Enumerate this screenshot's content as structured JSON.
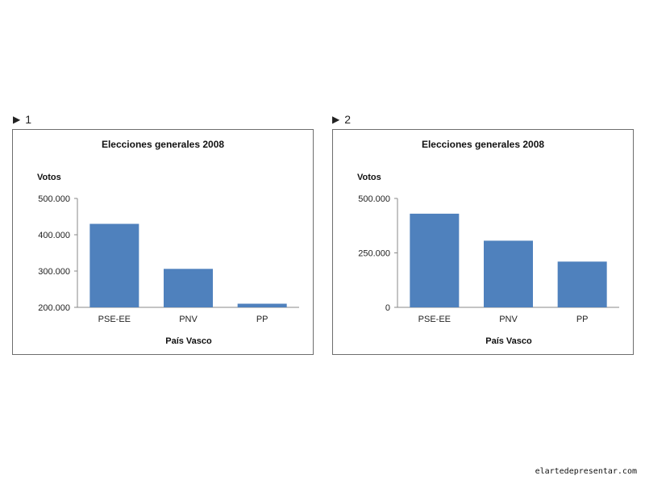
{
  "panels": [
    {
      "marker": "1"
    },
    {
      "marker": "2"
    }
  ],
  "watermark": "elartedepresentar.com",
  "colors": {
    "bar": "#4f81bd",
    "axis": "#8a8a8a"
  },
  "chart_data": [
    {
      "type": "bar",
      "title": "Elecciones generales 2008",
      "ylabel": "Votos",
      "xlabel": "País Vasco",
      "categories": [
        "PSE-EE",
        "PNV",
        "PP"
      ],
      "values": [
        430000,
        306000,
        210000
      ],
      "ylim": [
        200000,
        500000
      ],
      "yticks": [
        200000,
        300000,
        400000,
        500000
      ],
      "ytick_labels": [
        "200.000",
        "300.000",
        "400.000",
        "500.000"
      ]
    },
    {
      "type": "bar",
      "title": "Elecciones generales 2008",
      "ylabel": "Votos",
      "xlabel": "País Vasco",
      "categories": [
        "PSE-EE",
        "PNV",
        "PP"
      ],
      "values": [
        430000,
        306000,
        210000
      ],
      "ylim": [
        0,
        500000
      ],
      "yticks": [
        0,
        250000,
        500000
      ],
      "ytick_labels": [
        "0",
        "250.000",
        "500.000"
      ]
    }
  ]
}
